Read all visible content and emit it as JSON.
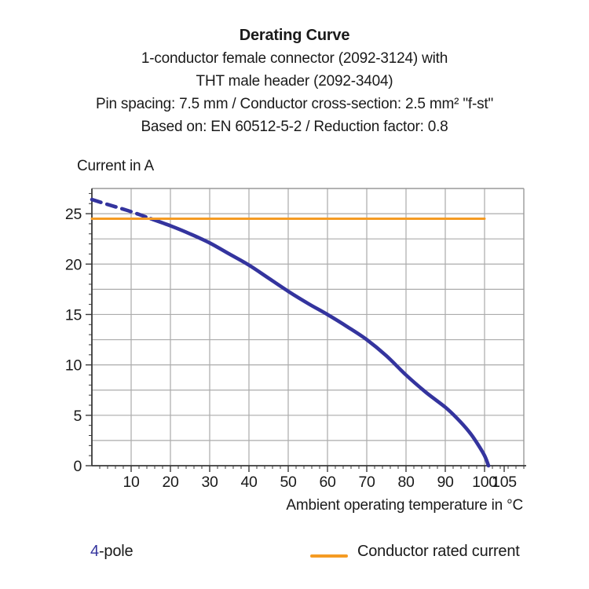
{
  "title": {
    "line1": "Derating Curve",
    "line2": "1-conductor female connector (2092-3124) with",
    "line3": "THT male header (2092-3404)",
    "line4": "Pin spacing: 7.5 mm / Conductor cross-section: 2.5 mm² \"f-st\"",
    "line5": "Based on: EN 60512-5-2 / Reduction factor: 0.8"
  },
  "chart_data": {
    "type": "line",
    "title": "Derating Curve",
    "xlabel": "Ambient operating temperature in °C",
    "ylabel": "Current in A",
    "xlim": [
      0,
      110
    ],
    "ylim": [
      0,
      27.5
    ],
    "x_tick_labels": [
      10,
      20,
      30,
      40,
      50,
      60,
      70,
      80,
      90,
      100,
      105
    ],
    "y_tick_labels": [
      0,
      5,
      10,
      15,
      20,
      25
    ],
    "x_gridline_step": 10,
    "y_gridline_step": 2.5,
    "x_minor_tick_step": 2,
    "y_minor_tick_step": 1,
    "grid": true,
    "legend_position": "bottom",
    "series": [
      {
        "name": "4-pole",
        "style": "dashed",
        "color": "#34349E",
        "points": [
          [
            0,
            26.4
          ],
          [
            5,
            25.8
          ],
          [
            10,
            25.2
          ],
          [
            15,
            24.5
          ]
        ]
      },
      {
        "name": "4-pole",
        "style": "solid",
        "color": "#34349E",
        "points": [
          [
            15,
            24.5
          ],
          [
            20,
            23.8
          ],
          [
            25,
            23.0
          ],
          [
            30,
            22.1
          ],
          [
            35,
            21.0
          ],
          [
            40,
            19.9
          ],
          [
            45,
            18.6
          ],
          [
            50,
            17.3
          ],
          [
            55,
            16.1
          ],
          [
            60,
            15.0
          ],
          [
            65,
            13.8
          ],
          [
            70,
            12.5
          ],
          [
            75,
            10.9
          ],
          [
            80,
            9.0
          ],
          [
            85,
            7.3
          ],
          [
            90,
            5.8
          ],
          [
            93,
            4.7
          ],
          [
            96,
            3.4
          ],
          [
            98,
            2.3
          ],
          [
            100,
            1.0
          ],
          [
            101,
            0.0
          ]
        ]
      },
      {
        "name": "Conductor rated current",
        "style": "solid",
        "color": "#F59B23",
        "points": [
          [
            0,
            24.5
          ],
          [
            100,
            24.5
          ]
        ]
      }
    ]
  },
  "legend": {
    "pole_number": "4",
    "pole_suffix": "-pole",
    "rated_label": "Conductor rated current"
  },
  "colors": {
    "curve_blue": "#34349E",
    "rated_orange": "#F59B23",
    "gridline": "#ABABAB",
    "frame": "#999999",
    "axis": "#3A3A3A",
    "text": "#1A1A1A"
  }
}
